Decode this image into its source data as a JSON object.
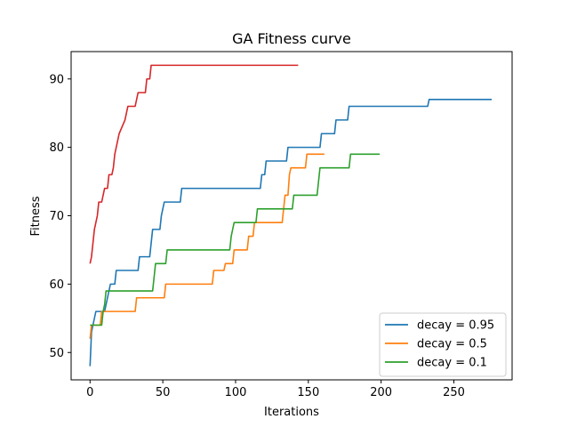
{
  "chart_data": {
    "type": "line",
    "title": "GA Fitness curve",
    "xlabel": "Iterations",
    "ylabel": "Fitness",
    "xlim": [
      -13,
      290
    ],
    "ylim": [
      46,
      94
    ],
    "xticks": [
      0,
      50,
      100,
      150,
      200,
      250
    ],
    "yticks": [
      50,
      60,
      70,
      80,
      90
    ],
    "grid": false,
    "legend_position": "lower-right",
    "series": [
      {
        "name": "decay = 0.95",
        "color": "#1f77b4",
        "points": [
          [
            0,
            48
          ],
          [
            1,
            53
          ],
          [
            2,
            54
          ],
          [
            4,
            56
          ],
          [
            10,
            56
          ],
          [
            12,
            58
          ],
          [
            14,
            60
          ],
          [
            17,
            60
          ],
          [
            18,
            62
          ],
          [
            33,
            62
          ],
          [
            34,
            64
          ],
          [
            41,
            64
          ],
          [
            42,
            66
          ],
          [
            43,
            68
          ],
          [
            48,
            68
          ],
          [
            49,
            70
          ],
          [
            50,
            71
          ],
          [
            51,
            72
          ],
          [
            62,
            72
          ],
          [
            63,
            74
          ],
          [
            117,
            74
          ],
          [
            118,
            76
          ],
          [
            120,
            76
          ],
          [
            121,
            78
          ],
          [
            135,
            78
          ],
          [
            136,
            80
          ],
          [
            158,
            80
          ],
          [
            159,
            82
          ],
          [
            168,
            82
          ],
          [
            169,
            84
          ],
          [
            177,
            84
          ],
          [
            178,
            86
          ],
          [
            232,
            86
          ],
          [
            233,
            87
          ],
          [
            276,
            87
          ]
        ]
      },
      {
        "name": "decay = 0.5",
        "color": "#ff7f0e",
        "points": [
          [
            0,
            52
          ],
          [
            1,
            54
          ],
          [
            7,
            54
          ],
          [
            8,
            56
          ],
          [
            31,
            56
          ],
          [
            32,
            58
          ],
          [
            51,
            58
          ],
          [
            52,
            60
          ],
          [
            84,
            60
          ],
          [
            85,
            62
          ],
          [
            92,
            62
          ],
          [
            93,
            63
          ],
          [
            98,
            63
          ],
          [
            99,
            65
          ],
          [
            108,
            65
          ],
          [
            109,
            67
          ],
          [
            112,
            67
          ],
          [
            113,
            69
          ],
          [
            132,
            69
          ],
          [
            133,
            71
          ],
          [
            134,
            73
          ],
          [
            136,
            73
          ],
          [
            137,
            76
          ],
          [
            138,
            77
          ],
          [
            148,
            77
          ],
          [
            149,
            79
          ],
          [
            161,
            79
          ]
        ]
      },
      {
        "name": "decay = 0.1",
        "color": "#2ca02c",
        "points": [
          [
            0,
            54
          ],
          [
            8,
            54
          ],
          [
            9,
            56
          ],
          [
            10,
            57
          ],
          [
            11,
            59
          ],
          [
            43,
            59
          ],
          [
            44,
            61
          ],
          [
            45,
            63
          ],
          [
            52,
            63
          ],
          [
            53,
            65
          ],
          [
            96,
            65
          ],
          [
            97,
            67
          ],
          [
            98,
            68
          ],
          [
            99,
            69
          ],
          [
            114,
            69
          ],
          [
            115,
            71
          ],
          [
            139,
            71
          ],
          [
            140,
            73
          ],
          [
            156,
            73
          ],
          [
            157,
            75
          ],
          [
            158,
            77
          ],
          [
            178,
            77
          ],
          [
            179,
            79
          ],
          [
            199,
            79
          ]
        ]
      },
      {
        "name": "",
        "color": "#d62728",
        "points": [
          [
            0,
            63
          ],
          [
            1,
            64
          ],
          [
            2,
            66
          ],
          [
            3,
            68
          ],
          [
            4,
            69
          ],
          [
            5,
            70
          ],
          [
            6,
            72
          ],
          [
            8,
            72
          ],
          [
            9,
            73
          ],
          [
            10,
            74
          ],
          [
            12,
            74
          ],
          [
            13,
            76
          ],
          [
            15,
            76
          ],
          [
            16,
            77
          ],
          [
            17,
            79
          ],
          [
            18,
            80
          ],
          [
            19,
            81
          ],
          [
            20,
            82
          ],
          [
            22,
            83
          ],
          [
            24,
            84
          ],
          [
            25,
            85
          ],
          [
            26,
            86
          ],
          [
            31,
            86
          ],
          [
            32,
            87
          ],
          [
            33,
            88
          ],
          [
            38,
            88
          ],
          [
            39,
            90
          ],
          [
            41,
            90
          ],
          [
            42,
            92
          ],
          [
            143,
            92
          ]
        ]
      }
    ]
  }
}
